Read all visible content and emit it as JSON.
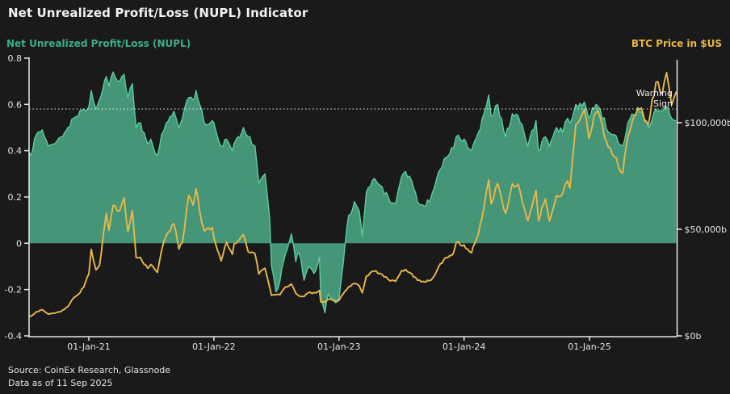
{
  "header": {
    "title": "Net Unrealized Profit/Loss (NUPL) Indicator",
    "left_axis_title": "Net Unrealized Profit/Loss (NUPL)",
    "right_axis_title": "BTC Price in $US"
  },
  "annotation": {
    "line1": "Warning",
    "line2": "Sign"
  },
  "footer": {
    "source": "Source: CoinEx Research, Glassnode",
    "as_of": "Data as of 11 Sep 2025"
  },
  "colors": {
    "background": "#1a1a1a",
    "nupl_fill": "#459578",
    "nupl_line": "#5bcd9e",
    "nupl_label": "#3eae88",
    "btc_line": "#e9b948",
    "btc_label": "#e9b942",
    "axis": "#e8e8e8",
    "tick_text": "#e3e3e3",
    "threshold_line": "#f5f5f5"
  },
  "chart_data": {
    "type": "line",
    "title": "Net Unrealized Profit/Loss (NUPL) Indicator",
    "x_range": [
      "2020-07-01",
      "2025-09-11"
    ],
    "grid": false,
    "x_axis": {
      "ticks": [
        [
          "2021-01-01",
          "01-Jan-21"
        ],
        [
          "2022-01-01",
          "01-Jan-22"
        ],
        [
          "2023-01-01",
          "01-Jan-23"
        ],
        [
          "2024-01-01",
          "01-Jan-24"
        ],
        [
          "2025-01-01",
          "01-Jan-25"
        ]
      ]
    },
    "left_axis": {
      "label": "Net Unrealized Profit/Loss (NUPL)",
      "range": [
        -0.4,
        0.8
      ],
      "ticks": [
        [
          0.8,
          "0.8"
        ],
        [
          0.6,
          "0.6"
        ],
        [
          0.4,
          "0.4"
        ],
        [
          0.2,
          "0.2"
        ],
        [
          0,
          "0"
        ],
        [
          -0.2,
          "-0.2"
        ],
        [
          -0.4,
          "-0.4"
        ]
      ]
    },
    "right_axis": {
      "label": "BTC Price in $US",
      "range_usd": [
        0,
        129000
      ],
      "ticks": [
        [
          0,
          "$0b"
        ],
        [
          50000,
          "$50,000b"
        ],
        [
          100000,
          "$100,000b"
        ]
      ]
    },
    "threshold": {
      "series": "NUPL",
      "value": 0.58,
      "style": "dotted",
      "annotation": "Warning Sign"
    },
    "series": [
      {
        "name": "NUPL",
        "axis": "left",
        "style": "area",
        "points": [
          [
            "2020-07-01",
            0.44
          ],
          [
            "2020-07-15",
            0.38
          ],
          [
            "2020-08-01",
            0.47
          ],
          [
            "2020-08-18",
            0.49
          ],
          [
            "2020-09-05",
            0.42
          ],
          [
            "2020-09-24",
            0.43
          ],
          [
            "2020-10-12",
            0.46
          ],
          [
            "2020-11-01",
            0.5
          ],
          [
            "2020-11-18",
            0.54
          ],
          [
            "2020-12-01",
            0.55
          ],
          [
            "2020-12-17",
            0.58
          ],
          [
            "2021-01-01",
            0.59
          ],
          [
            "2021-01-08",
            0.66
          ],
          [
            "2021-01-22",
            0.58
          ],
          [
            "2021-02-01",
            0.62
          ],
          [
            "2021-02-21",
            0.72
          ],
          [
            "2021-03-01",
            0.68
          ],
          [
            "2021-03-13",
            0.74
          ],
          [
            "2021-04-01",
            0.7
          ],
          [
            "2021-04-14",
            0.73
          ],
          [
            "2021-04-25",
            0.63
          ],
          [
            "2021-05-08",
            0.69
          ],
          [
            "2021-05-19",
            0.5
          ],
          [
            "2021-06-01",
            0.52
          ],
          [
            "2021-06-22",
            0.43
          ],
          [
            "2021-07-01",
            0.45
          ],
          [
            "2021-07-20",
            0.38
          ],
          [
            "2021-08-01",
            0.47
          ],
          [
            "2021-08-15",
            0.52
          ],
          [
            "2021-09-06",
            0.57
          ],
          [
            "2021-09-21",
            0.5
          ],
          [
            "2021-10-01",
            0.54
          ],
          [
            "2021-10-20",
            0.63
          ],
          [
            "2021-11-01",
            0.62
          ],
          [
            "2021-11-10",
            0.66
          ],
          [
            "2021-11-26",
            0.58
          ],
          [
            "2021-12-04",
            0.52
          ],
          [
            "2021-12-27",
            0.53
          ],
          [
            "2022-01-01",
            0.52
          ],
          [
            "2022-01-22",
            0.42
          ],
          [
            "2022-02-07",
            0.45
          ],
          [
            "2022-02-24",
            0.4
          ],
          [
            "2022-03-01",
            0.43
          ],
          [
            "2022-03-28",
            0.5
          ],
          [
            "2022-04-11",
            0.46
          ],
          [
            "2022-05-01",
            0.42
          ],
          [
            "2022-05-12",
            0.26
          ],
          [
            "2022-05-30",
            0.3
          ],
          [
            "2022-06-13",
            0.1
          ],
          [
            "2022-06-18",
            -0.1
          ],
          [
            "2022-07-01",
            -0.21
          ],
          [
            "2022-07-13",
            -0.16
          ],
          [
            "2022-07-28",
            -0.05
          ],
          [
            "2022-08-15",
            0.04
          ],
          [
            "2022-08-28",
            -0.08
          ],
          [
            "2022-09-06",
            -0.04
          ],
          [
            "2022-09-21",
            -0.16
          ],
          [
            "2022-10-04",
            -0.1
          ],
          [
            "2022-10-25",
            -0.12
          ],
          [
            "2022-11-05",
            -0.06
          ],
          [
            "2022-11-09",
            -0.24
          ],
          [
            "2022-11-21",
            -0.3
          ],
          [
            "2022-12-01",
            -0.22
          ],
          [
            "2022-12-17",
            -0.25
          ],
          [
            "2023-01-01",
            -0.24
          ],
          [
            "2023-01-14",
            -0.08
          ],
          [
            "2023-01-29",
            0.12
          ],
          [
            "2023-02-15",
            0.18
          ],
          [
            "2023-03-01",
            0.14
          ],
          [
            "2023-03-10",
            0.03
          ],
          [
            "2023-03-22",
            0.22
          ],
          [
            "2023-04-14",
            0.28
          ],
          [
            "2023-05-01",
            0.25
          ],
          [
            "2023-05-25",
            0.2
          ],
          [
            "2023-06-15",
            0.17
          ],
          [
            "2023-07-03",
            0.29
          ],
          [
            "2023-07-14",
            0.31
          ],
          [
            "2023-08-01",
            0.27
          ],
          [
            "2023-08-18",
            0.18
          ],
          [
            "2023-09-11",
            0.16
          ],
          [
            "2023-10-01",
            0.22
          ],
          [
            "2023-10-24",
            0.32
          ],
          [
            "2023-11-09",
            0.37
          ],
          [
            "2023-12-01",
            0.41
          ],
          [
            "2023-12-09",
            0.46
          ],
          [
            "2024-01-01",
            0.45
          ],
          [
            "2024-01-23",
            0.4
          ],
          [
            "2024-02-12",
            0.48
          ],
          [
            "2024-02-28",
            0.56
          ],
          [
            "2024-03-13",
            0.64
          ],
          [
            "2024-03-20",
            0.55
          ],
          [
            "2024-04-08",
            0.6
          ],
          [
            "2024-05-01",
            0.46
          ],
          [
            "2024-05-21",
            0.56
          ],
          [
            "2024-06-07",
            0.55
          ],
          [
            "2024-06-24",
            0.48
          ],
          [
            "2024-07-05",
            0.42
          ],
          [
            "2024-07-29",
            0.53
          ],
          [
            "2024-08-05",
            0.4
          ],
          [
            "2024-08-25",
            0.46
          ],
          [
            "2024-09-06",
            0.42
          ],
          [
            "2024-09-27",
            0.5
          ],
          [
            "2024-10-15",
            0.48
          ],
          [
            "2024-10-29",
            0.54
          ],
          [
            "2024-11-05",
            0.52
          ],
          [
            "2024-11-22",
            0.6
          ],
          [
            "2024-12-17",
            0.61
          ],
          [
            "2024-12-30",
            0.54
          ],
          [
            "2025-01-20",
            0.6
          ],
          [
            "2025-02-01",
            0.58
          ],
          [
            "2025-02-25",
            0.48
          ],
          [
            "2025-03-14",
            0.47
          ],
          [
            "2025-04-08",
            0.42
          ],
          [
            "2025-04-23",
            0.52
          ],
          [
            "2025-05-22",
            0.58
          ],
          [
            "2025-06-06",
            0.55
          ],
          [
            "2025-06-22",
            0.5
          ],
          [
            "2025-07-14",
            0.58
          ],
          [
            "2025-08-01",
            0.57
          ],
          [
            "2025-08-14",
            0.59
          ],
          [
            "2025-08-29",
            0.54
          ],
          [
            "2025-09-11",
            0.53
          ]
        ]
      },
      {
        "name": "BTC Price",
        "axis": "right",
        "unit": "USD",
        "style": "line",
        "points": [
          [
            "2020-07-01",
            9100
          ],
          [
            "2020-07-15",
            9200
          ],
          [
            "2020-08-01",
            11300
          ],
          [
            "2020-08-18",
            12300
          ],
          [
            "2020-09-05",
            10200
          ],
          [
            "2020-09-24",
            10700
          ],
          [
            "2020-10-12",
            11400
          ],
          [
            "2020-11-01",
            13800
          ],
          [
            "2020-11-18",
            17800
          ],
          [
            "2020-12-01",
            19400
          ],
          [
            "2020-12-17",
            22800
          ],
          [
            "2021-01-01",
            29000
          ],
          [
            "2021-01-08",
            40600
          ],
          [
            "2021-01-22",
            31000
          ],
          [
            "2021-02-01",
            33100
          ],
          [
            "2021-02-21",
            57500
          ],
          [
            "2021-03-01",
            49600
          ],
          [
            "2021-03-13",
            61200
          ],
          [
            "2021-04-01",
            58800
          ],
          [
            "2021-04-14",
            64800
          ],
          [
            "2021-04-25",
            49000
          ],
          [
            "2021-05-08",
            58800
          ],
          [
            "2021-05-19",
            36700
          ],
          [
            "2021-06-01",
            36700
          ],
          [
            "2021-06-22",
            31700
          ],
          [
            "2021-07-01",
            33500
          ],
          [
            "2021-07-20",
            29800
          ],
          [
            "2021-08-01",
            39900
          ],
          [
            "2021-08-15",
            47000
          ],
          [
            "2021-09-06",
            52700
          ],
          [
            "2021-09-21",
            40700
          ],
          [
            "2021-10-01",
            43800
          ],
          [
            "2021-10-20",
            66000
          ],
          [
            "2021-11-01",
            61300
          ],
          [
            "2021-11-10",
            69000
          ],
          [
            "2021-11-26",
            53600
          ],
          [
            "2021-12-04",
            49200
          ],
          [
            "2021-12-27",
            50800
          ],
          [
            "2022-01-01",
            46200
          ],
          [
            "2022-01-22",
            35100
          ],
          [
            "2022-02-07",
            43900
          ],
          [
            "2022-02-24",
            38300
          ],
          [
            "2022-03-01",
            43200
          ],
          [
            "2022-03-28",
            47500
          ],
          [
            "2022-04-11",
            39500
          ],
          [
            "2022-05-01",
            38500
          ],
          [
            "2022-05-12",
            29000
          ],
          [
            "2022-05-30",
            31700
          ],
          [
            "2022-06-13",
            22500
          ],
          [
            "2022-06-18",
            19000
          ],
          [
            "2022-07-01",
            19300
          ],
          [
            "2022-07-13",
            19300
          ],
          [
            "2022-07-28",
            22900
          ],
          [
            "2022-08-15",
            24300
          ],
          [
            "2022-08-28",
            20000
          ],
          [
            "2022-09-06",
            18800
          ],
          [
            "2022-09-21",
            18500
          ],
          [
            "2022-10-04",
            20300
          ],
          [
            "2022-10-25",
            20100
          ],
          [
            "2022-11-05",
            21300
          ],
          [
            "2022-11-09",
            15900
          ],
          [
            "2022-11-21",
            15800
          ],
          [
            "2022-12-01",
            17200
          ],
          [
            "2022-12-17",
            16700
          ],
          [
            "2023-01-01",
            16600
          ],
          [
            "2023-01-14",
            19900
          ],
          [
            "2023-01-29",
            23000
          ],
          [
            "2023-02-15",
            24600
          ],
          [
            "2023-03-01",
            23500
          ],
          [
            "2023-03-10",
            20200
          ],
          [
            "2023-03-22",
            28100
          ],
          [
            "2023-04-14",
            30400
          ],
          [
            "2023-05-01",
            29300
          ],
          [
            "2023-05-25",
            26400
          ],
          [
            "2023-06-15",
            25600
          ],
          [
            "2023-07-03",
            30600
          ],
          [
            "2023-07-14",
            31200
          ],
          [
            "2023-08-01",
            29200
          ],
          [
            "2023-08-18",
            26100
          ],
          [
            "2023-09-11",
            25200
          ],
          [
            "2023-10-01",
            27000
          ],
          [
            "2023-10-24",
            33900
          ],
          [
            "2023-11-09",
            36700
          ],
          [
            "2023-12-01",
            38700
          ],
          [
            "2023-12-09",
            43700
          ],
          [
            "2024-01-01",
            42600
          ],
          [
            "2024-01-23",
            39000
          ],
          [
            "2024-02-12",
            48200
          ],
          [
            "2024-02-28",
            60400
          ],
          [
            "2024-03-13",
            73100
          ],
          [
            "2024-03-20",
            62000
          ],
          [
            "2024-04-08",
            71500
          ],
          [
            "2024-05-01",
            57500
          ],
          [
            "2024-05-21",
            71400
          ],
          [
            "2024-06-07",
            71100
          ],
          [
            "2024-06-24",
            60300
          ],
          [
            "2024-07-05",
            54000
          ],
          [
            "2024-07-29",
            68200
          ],
          [
            "2024-08-05",
            54000
          ],
          [
            "2024-08-25",
            64200
          ],
          [
            "2024-09-06",
            53900
          ],
          [
            "2024-09-27",
            65800
          ],
          [
            "2024-10-15",
            67000
          ],
          [
            "2024-10-29",
            72700
          ],
          [
            "2024-11-05",
            69400
          ],
          [
            "2024-11-22",
            99000
          ],
          [
            "2024-12-17",
            106100
          ],
          [
            "2024-12-30",
            92600
          ],
          [
            "2025-01-20",
            104700
          ],
          [
            "2025-02-01",
            102400
          ],
          [
            "2025-02-25",
            88600
          ],
          [
            "2025-03-14",
            84000
          ],
          [
            "2025-04-08",
            76300
          ],
          [
            "2025-04-23",
            93700
          ],
          [
            "2025-05-22",
            107000
          ],
          [
            "2025-06-06",
            104400
          ],
          [
            "2025-06-22",
            99000
          ],
          [
            "2025-07-14",
            119100
          ],
          [
            "2025-08-01",
            113400
          ],
          [
            "2025-08-14",
            123500
          ],
          [
            "2025-08-29",
            108400
          ],
          [
            "2025-09-11",
            114300
          ]
        ]
      }
    ]
  }
}
